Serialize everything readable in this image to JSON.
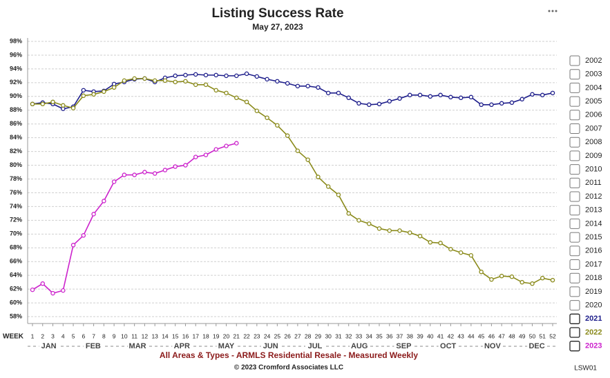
{
  "chart_data": {
    "type": "line",
    "title": "Listing Success Rate",
    "subtitle": "May 27, 2023",
    "x_axis_label": "WEEK",
    "footnote": "All Areas & Types - ARMLS Residential Resale - Measured Weekly",
    "copyright": "© 2023 Cromford Associates LLC",
    "code": "LSW01",
    "months": [
      "JAN",
      "FEB",
      "MAR",
      "APR",
      "MAY",
      "JUN",
      "JUL",
      "AUG",
      "SEP",
      "OCT",
      "NOV",
      "DEC"
    ],
    "legend_years": [
      "2002",
      "2003",
      "2004",
      "2005",
      "2006",
      "2007",
      "2008",
      "2009",
      "2010",
      "2011",
      "2012",
      "2013",
      "2014",
      "2015",
      "2016",
      "2017",
      "2018",
      "2019",
      "2020"
    ],
    "x": [
      1,
      2,
      3,
      4,
      5,
      6,
      7,
      8,
      9,
      10,
      11,
      12,
      13,
      14,
      15,
      16,
      17,
      18,
      19,
      20,
      21,
      22,
      23,
      24,
      25,
      26,
      27,
      28,
      29,
      30,
      31,
      32,
      33,
      34,
      35,
      36,
      37,
      38,
      39,
      40,
      41,
      42,
      43,
      44,
      45,
      46,
      47,
      48,
      49,
      50,
      51,
      52
    ],
    "xlim": [
      1,
      52
    ],
    "xticks": [
      1,
      2,
      3,
      4,
      5,
      6,
      7,
      8,
      9,
      10,
      11,
      12,
      13,
      14,
      15,
      16,
      17,
      18,
      19,
      20,
      21,
      22,
      23,
      24,
      25,
      26,
      27,
      28,
      29,
      30,
      31,
      32,
      33,
      34,
      35,
      36,
      37,
      38,
      39,
      40,
      41,
      42,
      43,
      44,
      45,
      46,
      47,
      48,
      49,
      50,
      51,
      52
    ],
    "ylim": [
      57,
      98
    ],
    "yticks": [
      {
        "value": 58,
        "label": "58%"
      },
      {
        "value": 60,
        "label": "60%"
      },
      {
        "value": 62,
        "label": "62%"
      },
      {
        "value": 64,
        "label": "64%"
      },
      {
        "value": 66,
        "label": "66%"
      },
      {
        "value": 68,
        "label": "68%"
      },
      {
        "value": 70,
        "label": "70%"
      },
      {
        "value": 72,
        "label": "72%"
      },
      {
        "value": 74,
        "label": "74%"
      },
      {
        "value": 76,
        "label": "76%"
      },
      {
        "value": 78,
        "label": "78%"
      },
      {
        "value": 80,
        "label": "80%"
      },
      {
        "value": 82,
        "label": "82%"
      },
      {
        "value": 84,
        "label": "84%"
      },
      {
        "value": 86,
        "label": "86%"
      },
      {
        "value": 88,
        "label": "88%"
      },
      {
        "value": 90,
        "label": "90%"
      },
      {
        "value": 92,
        "label": "92%"
      },
      {
        "value": 94,
        "label": "94%"
      },
      {
        "value": 96,
        "label": "96%"
      },
      {
        "value": 98,
        "label": "98%"
      }
    ],
    "grid": true,
    "legend": "right",
    "series": [
      {
        "name": "2021",
        "color": "#1c1c8a",
        "values": [
          88.9,
          89.1,
          88.9,
          88.2,
          88.5,
          90.9,
          90.7,
          90.8,
          91.8,
          92.1,
          92.5,
          92.6,
          92.1,
          92.7,
          93.0,
          93.1,
          93.2,
          93.1,
          93.1,
          93.0,
          93.0,
          93.3,
          92.9,
          92.5,
          92.2,
          91.9,
          91.5,
          91.5,
          91.3,
          90.5,
          90.5,
          89.8,
          89.0,
          88.8,
          88.9,
          89.3,
          89.7,
          90.2,
          90.2,
          90.0,
          90.2,
          89.9,
          89.8,
          89.9,
          88.8,
          88.8,
          89.0,
          89.1,
          89.6,
          90.3,
          90.2,
          90.5
        ]
      },
      {
        "name": "2022",
        "color": "#8a8a1a",
        "values": [
          88.9,
          88.9,
          89.2,
          88.7,
          88.3,
          90.1,
          90.3,
          90.7,
          91.3,
          92.3,
          92.6,
          92.6,
          92.3,
          92.3,
          92.1,
          92.2,
          91.7,
          91.7,
          90.9,
          90.5,
          89.8,
          89.2,
          87.9,
          86.9,
          85.8,
          84.3,
          82.1,
          80.8,
          78.3,
          76.9,
          75.7,
          73.0,
          72.0,
          71.5,
          70.8,
          70.5,
          70.5,
          70.2,
          69.7,
          68.8,
          68.7,
          67.8,
          67.3,
          66.9,
          64.5,
          63.4,
          63.9,
          63.8,
          63.0,
          62.8,
          63.6,
          63.3
        ]
      },
      {
        "name": "2023",
        "color": "#cc22cc",
        "values": [
          61.9,
          62.8,
          61.4,
          61.8,
          68.4,
          69.8,
          72.9,
          74.8,
          77.6,
          78.6,
          78.6,
          79.0,
          78.8,
          79.3,
          79.8,
          80.0,
          81.2,
          81.5,
          82.3,
          82.8,
          83.2,
          null,
          null,
          null,
          null,
          null,
          null,
          null,
          null,
          null,
          null,
          null,
          null,
          null,
          null,
          null,
          null,
          null,
          null,
          null,
          null,
          null,
          null,
          null,
          null,
          null,
          null,
          null,
          null,
          null,
          null,
          null
        ]
      }
    ]
  }
}
